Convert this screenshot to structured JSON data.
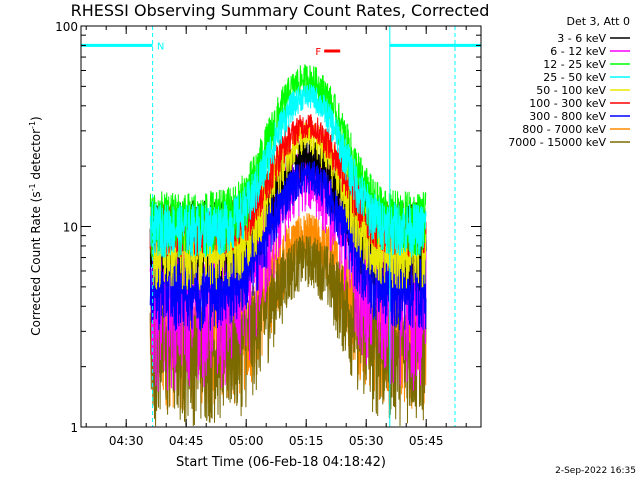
{
  "chart_data": {
    "type": "line",
    "title": "RHESSI Observing Summary Count Rates, Corrected",
    "xlabel": "Start Time (06-Feb-18 04:18:42)",
    "ylabel_main": "Corrected Count Rate (s",
    "ylabel_sup1": "-1",
    "ylabel_mid": " detector",
    "ylabel_sup2": "-1",
    "ylabel_end": ")",
    "y_scale": "log",
    "ylim": [
      1,
      100
    ],
    "xlim": [
      "04:18:42",
      "05:58:42"
    ],
    "x_ticks": [
      {
        "label": "04:30",
        "minutes": 11.3
      },
      {
        "label": "04:45",
        "minutes": 26.3
      },
      {
        "label": "05:00",
        "minutes": 41.3
      },
      {
        "label": "05:15",
        "minutes": 56.3
      },
      {
        "label": "05:30",
        "minutes": 71.3
      },
      {
        "label": "05:45",
        "minutes": 86.3
      }
    ],
    "y_ticks": [
      {
        "label": "1",
        "value": 1
      },
      {
        "label": "10",
        "value": 10
      },
      {
        "label": "100",
        "value": 100
      }
    ],
    "legend_title": "Det 3, Att 0",
    "legend_position": "top-right outside",
    "series": [
      {
        "name": "3 - 6 keV",
        "color": "#000000",
        "peak": 22,
        "base": 9,
        "noise": 0.25
      },
      {
        "name": "6 - 12 keV",
        "color": "#ff00ff",
        "peak": 18,
        "base": 5,
        "noise": 0.35
      },
      {
        "name": "12 - 25 keV",
        "color": "#00ff00",
        "peak": 55,
        "base": 11,
        "noise": 0.18
      },
      {
        "name": "25 - 50 keV",
        "color": "#00ffff",
        "peak": 45,
        "base": 10,
        "noise": 0.15
      },
      {
        "name": "50 - 100 keV",
        "color": "#e8e800",
        "peak": 28,
        "base": 8,
        "noise": 0.2
      },
      {
        "name": "100 - 300 keV",
        "color": "#ff0000",
        "peak": 32,
        "base": 10,
        "noise": 0.15
      },
      {
        "name": "300 - 800 keV",
        "color": "#0000ff",
        "peak": 18,
        "base": 5,
        "noise": 0.2
      },
      {
        "name": "800 - 7000 keV",
        "color": "#ff8c00",
        "peak": 9,
        "base": 3,
        "noise": 0.3
      },
      {
        "name": "7000 - 15000 keV",
        "color": "#7a6a00",
        "peak": 7,
        "base": 2.5,
        "noise": 0.3
      }
    ],
    "data_start_minutes": 17.3,
    "data_end_minutes": 46.3,
    "data_resume_minutes": 46.3,
    "data_stop_minutes": 86.3,
    "peak_minutes": 56.5,
    "flag_labels": [
      {
        "text": "N",
        "color": "#00ffff",
        "start_minutes": 0,
        "end_minutes": 17.9,
        "level": 80
      },
      {
        "text": "",
        "color": "#00ffff",
        "start_minutes": 77.2,
        "end_minutes": 100,
        "level": 80
      },
      {
        "text": "F",
        "color": "#ff0000",
        "start_minutes": 60.8,
        "end_minutes": 64.8,
        "level": 75
      }
    ],
    "night_lines_minutes": [
      17.9,
      93.5
    ],
    "saa_lines_minutes": [
      77.2
    ],
    "grid": false
  },
  "timestamp": "2-Sep-2022 16:35"
}
